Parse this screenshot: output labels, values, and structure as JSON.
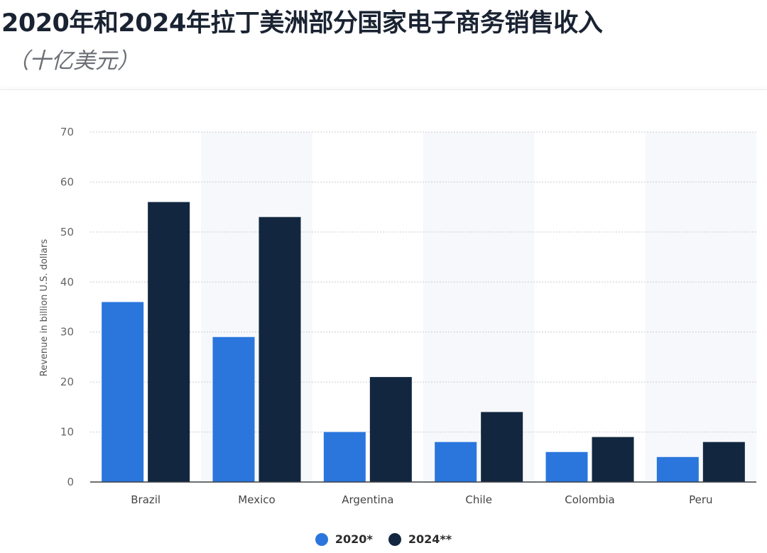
{
  "header": {
    "title": "2020年和2024年拉丁美洲部分国家电子商务销售收入",
    "subtitle": "（十亿美元）"
  },
  "chart_data": {
    "type": "bar",
    "categories": [
      "Brazil",
      "Mexico",
      "Argentina",
      "Chile",
      "Colombia",
      "Peru"
    ],
    "series": [
      {
        "name": "2020*",
        "values": [
          36,
          29,
          10,
          8,
          6,
          5
        ],
        "color": "#2a76dd"
      },
      {
        "name": "2024**",
        "values": [
          56,
          53,
          21,
          14,
          9,
          8
        ],
        "color": "#12273f"
      }
    ],
    "ylabel": "Revenue in billion U.S. dollars",
    "xlabel": "",
    "ylim": [
      0,
      70
    ],
    "yticks": [
      0,
      10,
      20,
      30,
      40,
      50,
      60,
      70
    ],
    "grid": true,
    "legend": "bottom-center"
  }
}
